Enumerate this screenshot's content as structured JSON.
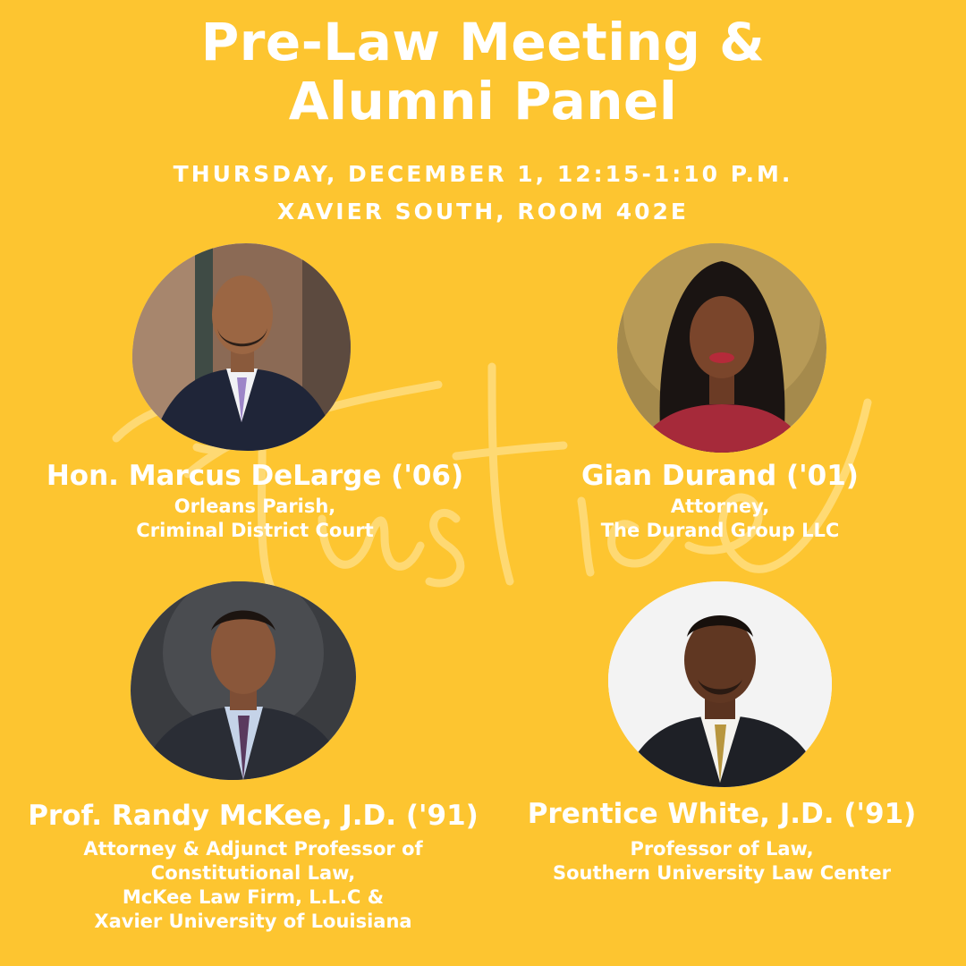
{
  "event": {
    "title_line1": "Pre-Law Meeting &",
    "title_line2": "Alumni Panel",
    "date_time": "THURSDAY, DECEMBER 1, 12:15-1:10 P.M.",
    "location": "XAVIER SOUTH, ROOM 402E",
    "watermark_text": "Justice"
  },
  "colors": {
    "background": "#fdc530",
    "text": "#ffffff"
  },
  "panelists": [
    {
      "name": "Hon. Marcus DeLarge ('06)",
      "role_lines": [
        "Orleans Parish,",
        "Criminal District Court"
      ]
    },
    {
      "name": "Gian Durand ('01)",
      "role_lines": [
        "Attorney,",
        "The Durand Group LLC"
      ]
    },
    {
      "name": "Prof. Randy McKee, J.D. ('91)",
      "role_lines": [
        "Attorney & Adjunct Professor of",
        "Constitutional Law,",
        "McKee Law Firm, L.L.C &",
        "Xavier University of Louisiana"
      ]
    },
    {
      "name": "Prentice White, J.D. ('91)",
      "role_lines": [
        "Professor of Law,",
        "Southern University Law Center"
      ]
    }
  ]
}
